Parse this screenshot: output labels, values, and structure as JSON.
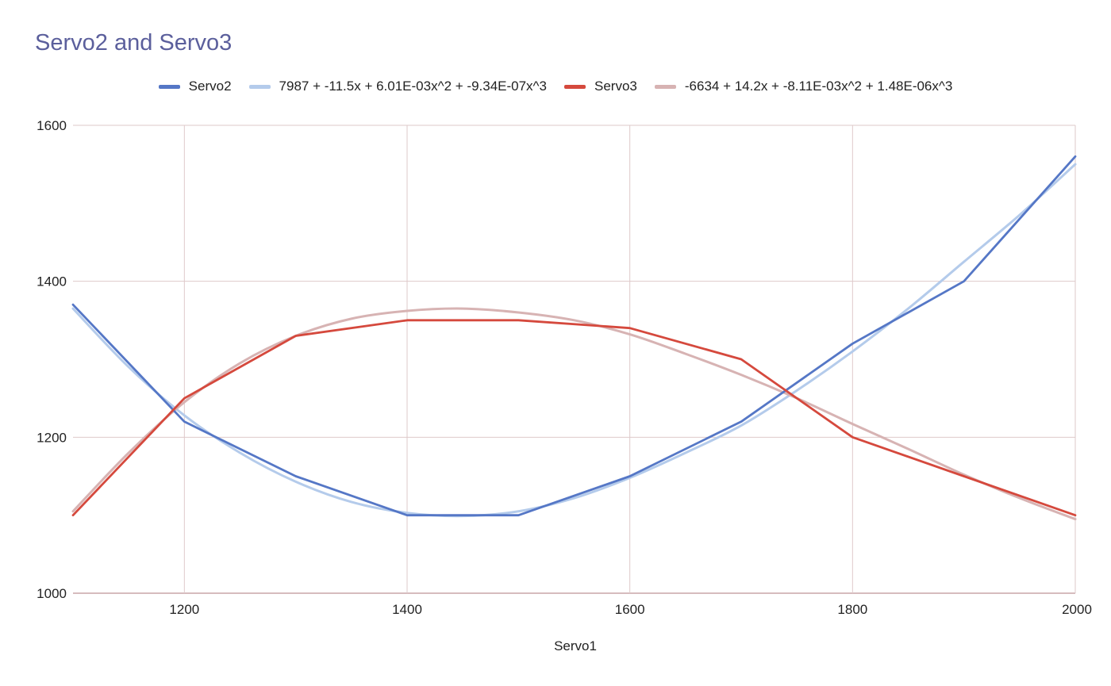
{
  "chart_data": {
    "type": "line",
    "title": "Servo2 and Servo3",
    "xlabel": "Servo1",
    "ylabel": "",
    "xlim": [
      1100,
      2000
    ],
    "ylim": [
      1000,
      1600
    ],
    "x_ticks": [
      1200,
      1400,
      1600,
      1800,
      2000
    ],
    "y_ticks": [
      1000,
      1200,
      1400,
      1600
    ],
    "x_tick_labels": [
      "1200",
      "1400",
      "1600",
      "1800",
      "2000"
    ],
    "y_tick_labels": [
      "1000",
      "1200",
      "1400",
      "1600"
    ],
    "grid": true,
    "legend_position": "top",
    "series": [
      {
        "name": "Servo2",
        "kind": "data",
        "color": "#5577c6",
        "x": [
          1100,
          1200,
          1300,
          1400,
          1500,
          1600,
          1700,
          1800,
          1900,
          2000
        ],
        "y": [
          1370,
          1220,
          1150,
          1100,
          1100,
          1150,
          1220,
          1320,
          1400,
          1560
        ]
      },
      {
        "name": "7987 + -11.5x + 6.01E-03x^2 + -9.34E-07x^3",
        "kind": "trendline",
        "color": "#b4cbeb",
        "x": [
          1100,
          1150,
          1200,
          1250,
          1300,
          1350,
          1400,
          1450,
          1500,
          1550,
          1600,
          1650,
          1700,
          1750,
          1800,
          1850,
          1900,
          1950,
          2000
        ],
        "y": [
          1365,
          1290,
          1228,
          1180,
          1143,
          1117,
          1103,
          1099,
          1105,
          1122,
          1148,
          1180,
          1215,
          1260,
          1310,
          1365,
          1425,
          1485,
          1550
        ]
      },
      {
        "name": "Servo3",
        "kind": "data",
        "color": "#d5493d",
        "x": [
          1100,
          1200,
          1300,
          1400,
          1500,
          1600,
          1700,
          1800,
          1900,
          2000
        ],
        "y": [
          1100,
          1250,
          1330,
          1350,
          1350,
          1340,
          1300,
          1200,
          1150,
          1100
        ]
      },
      {
        "name": "-6634 + 14.2x + -8.11E-03x^2 + 1.48E-06x^3",
        "kind": "trendline",
        "color": "#d7b3b3",
        "x": [
          1100,
          1150,
          1200,
          1250,
          1300,
          1350,
          1400,
          1450,
          1500,
          1550,
          1600,
          1650,
          1700,
          1750,
          1800,
          1850,
          1900,
          1950,
          2000
        ],
        "y": [
          1105,
          1180,
          1245,
          1295,
          1330,
          1352,
          1362,
          1365,
          1360,
          1350,
          1332,
          1307,
          1280,
          1250,
          1217,
          1185,
          1152,
          1122,
          1095
        ]
      }
    ]
  }
}
